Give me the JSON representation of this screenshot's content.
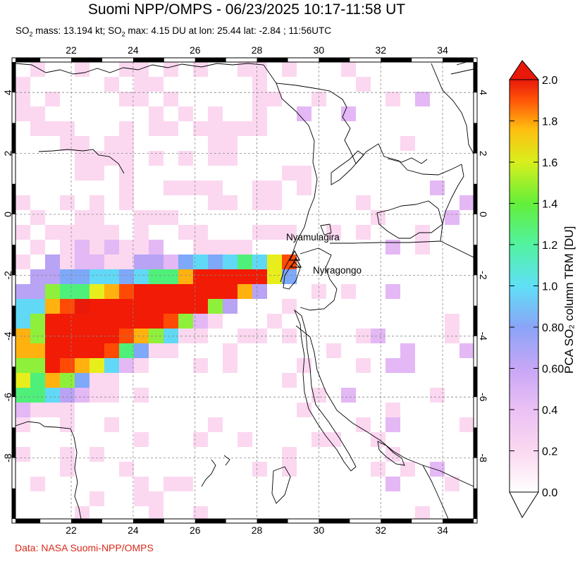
{
  "title": "Suomi NPP/OMPS - 06/23/2025 10:17-11:58 UT",
  "subtitle": {
    "mass_prefix": "SO",
    "mass_sub": "2",
    "mass_text": " mass: 13.194 kt; SO",
    "max_sub": "2",
    "max_text": " max: 4.15 DU at lon: 25.44 lat: -2.84 ; 11:56UTC"
  },
  "credit": "Data: NASA Suomi-NPP/OMPS",
  "map": {
    "lon_ticks": [
      "22",
      "24",
      "26",
      "28",
      "30",
      "32",
      "34"
    ],
    "lat_ticks": [
      "4",
      "2",
      "0",
      "-2",
      "-4",
      "-6",
      "-8"
    ],
    "lon_values": [
      22,
      24,
      26,
      28,
      30,
      32,
      34
    ],
    "lat_values": [
      4,
      2,
      0,
      -2,
      -4,
      -6,
      -8
    ],
    "lon_range": [
      20.2,
      35.0
    ],
    "lat_range": [
      -10.0,
      5.0
    ],
    "volcanoes": [
      {
        "name": "Nyamulagira",
        "lon": 29.2,
        "lat": -1.41
      },
      {
        "name": "Nyiragongo",
        "lon": 29.25,
        "lat": -1.52
      }
    ]
  },
  "colorbar": {
    "label": "PCA SO₂ column TRM [DU]",
    "ticks": [
      "2.0",
      "1.8",
      "1.6",
      "1.4",
      "1.2",
      "1.0",
      "0.80",
      "0.60",
      "0.4",
      "0.2",
      "0.0"
    ],
    "range": [
      0.0,
      2.0
    ],
    "colors": [
      "#ffffff",
      "#fbd8f0",
      "#e3b8f5",
      "#b8a3f5",
      "#7ea8f8",
      "#61d9f6",
      "#4ff07a",
      "#8ef03a",
      "#e8ee1c",
      "#ffb20f",
      "#ff4a05",
      "#ea1a0a"
    ]
  }
}
